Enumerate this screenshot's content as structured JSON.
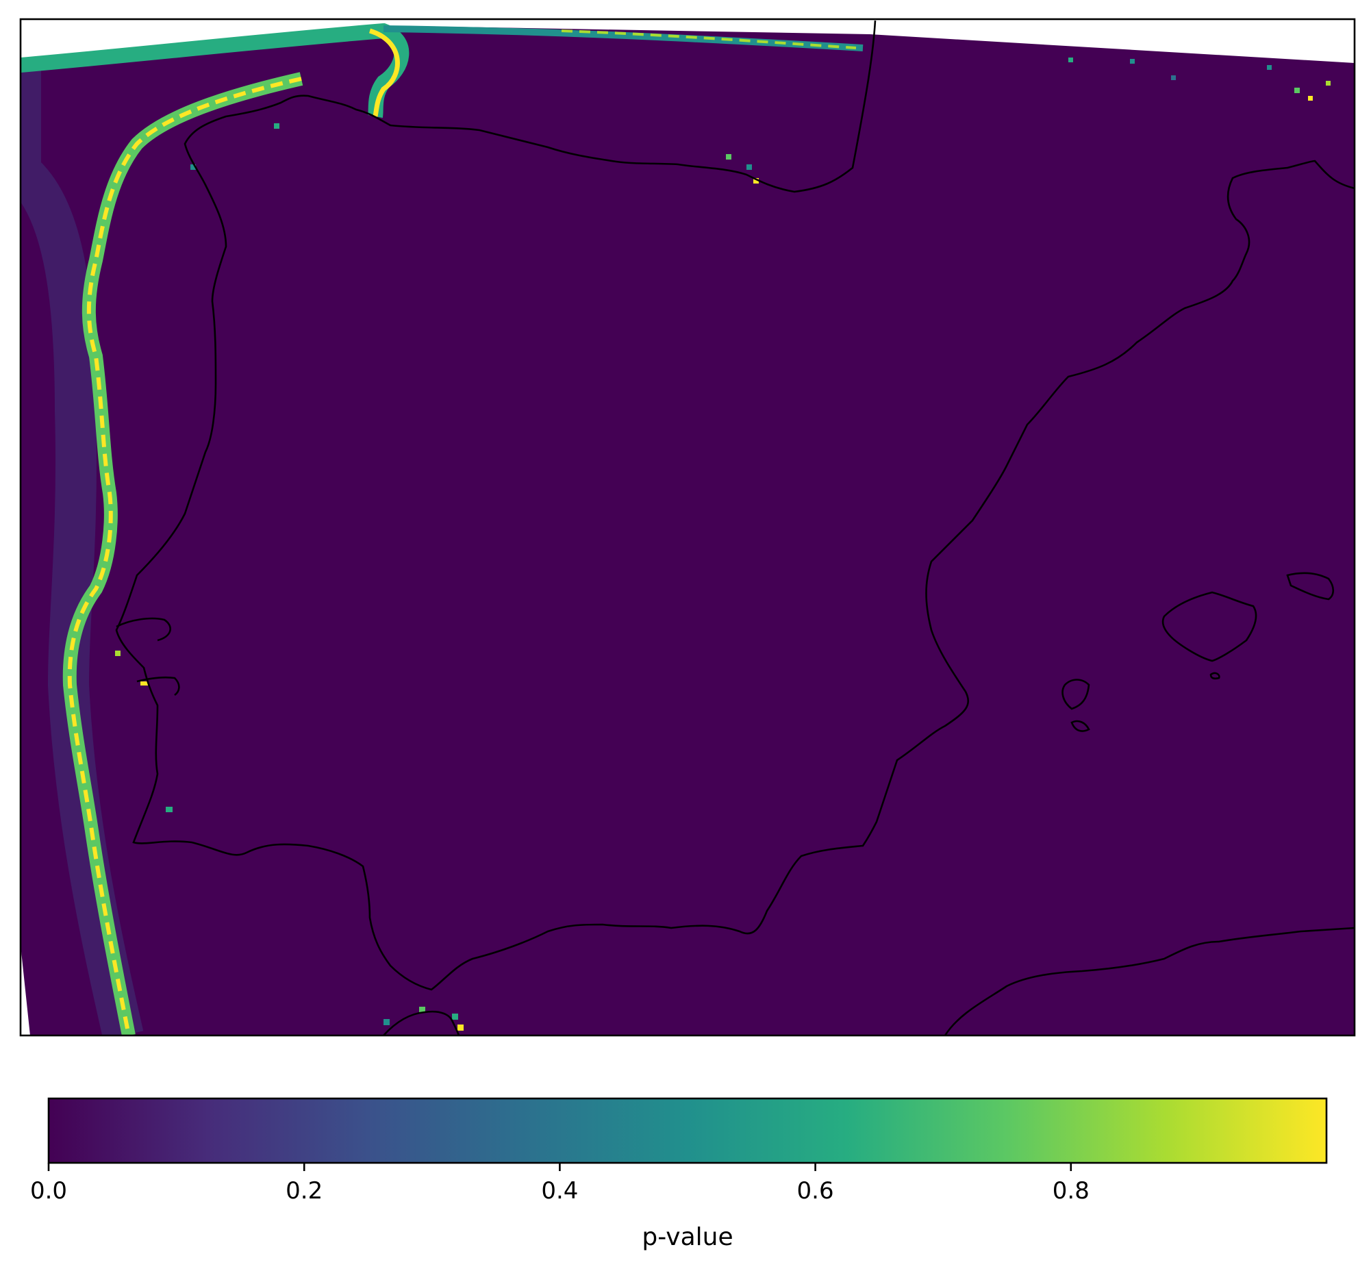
{
  "chart_data": {
    "type": "heatmap",
    "projection": "map",
    "region": "Iberian Peninsula",
    "field": "p-value",
    "colormap": "viridis",
    "colorbar": {
      "label": "p-value",
      "range": [
        0.0,
        1.0
      ],
      "ticks": [
        0.0,
        0.2,
        0.4,
        0.6,
        0.8
      ],
      "tick_labels": [
        "0.0",
        "0.2",
        "0.4",
        "0.6",
        "0.8"
      ],
      "orientation": "horizontal",
      "placement": "bottom"
    },
    "background_value": 0.0,
    "features": [
      {
        "name": "Atlantic coastal band (west)",
        "p_value_range": [
          0.6,
          1.0
        ]
      },
      {
        "name": "Bay of Biscay band (north)",
        "p_value_range": [
          0.5,
          1.0
        ]
      }
    ],
    "colors": {
      "low": "#440154",
      "mid": "#21918c",
      "high": "#fde725",
      "coastline": "#000000"
    }
  }
}
